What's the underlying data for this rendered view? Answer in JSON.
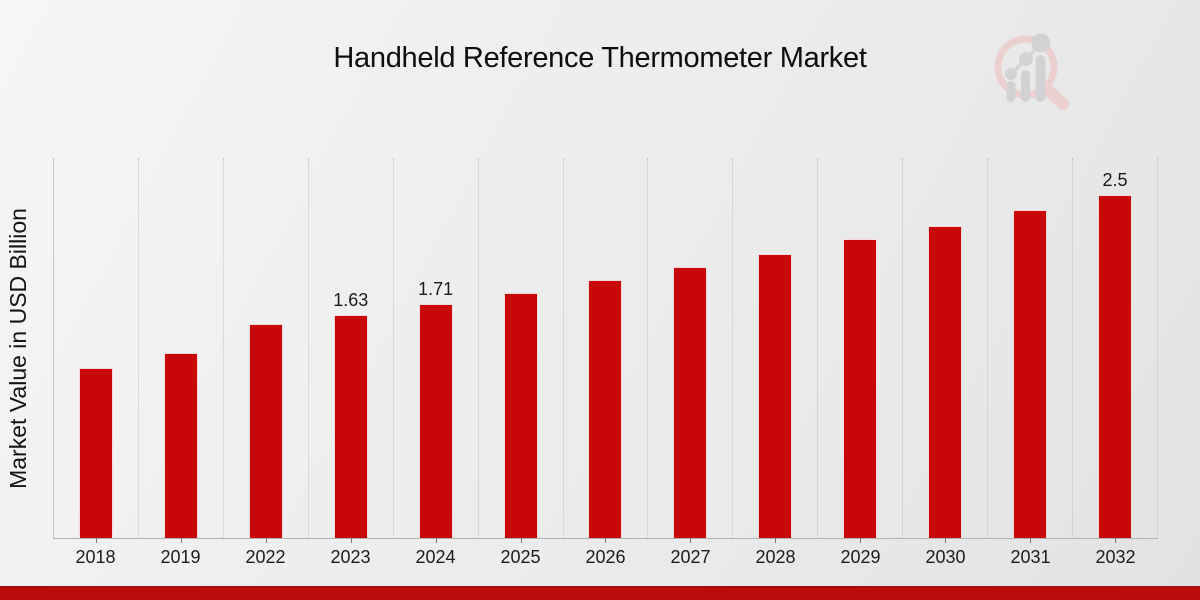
{
  "header": {
    "title": "Handheld Reference Thermometer Market"
  },
  "chart_data": {
    "type": "bar",
    "title": "Handheld Reference Thermometer Market",
    "xlabel": "",
    "ylabel": "Market Value in USD Billion",
    "categories": [
      "2018",
      "2019",
      "2022",
      "2023",
      "2024",
      "2025",
      "2026",
      "2027",
      "2028",
      "2029",
      "2030",
      "2031",
      "2032"
    ],
    "values": [
      1.24,
      1.35,
      1.56,
      1.63,
      1.71,
      1.79,
      1.88,
      1.98,
      2.07,
      2.18,
      2.28,
      2.39,
      2.5
    ],
    "value_labels": {
      "2023": "1.63",
      "2024": "1.71",
      "2032": "2.5"
    },
    "ylim": [
      0,
      2.78
    ],
    "grid": "vertical-dotted",
    "legend": false,
    "bar_color": "#c80808"
  },
  "branding": {
    "logo_icon": "magnifier-bar-chart-logo"
  },
  "colors": {
    "bar": "#c80808",
    "footer_band": "#bb0c0c",
    "logo_pink": "#eccfcf",
    "logo_grey": "#d2d2d5"
  }
}
